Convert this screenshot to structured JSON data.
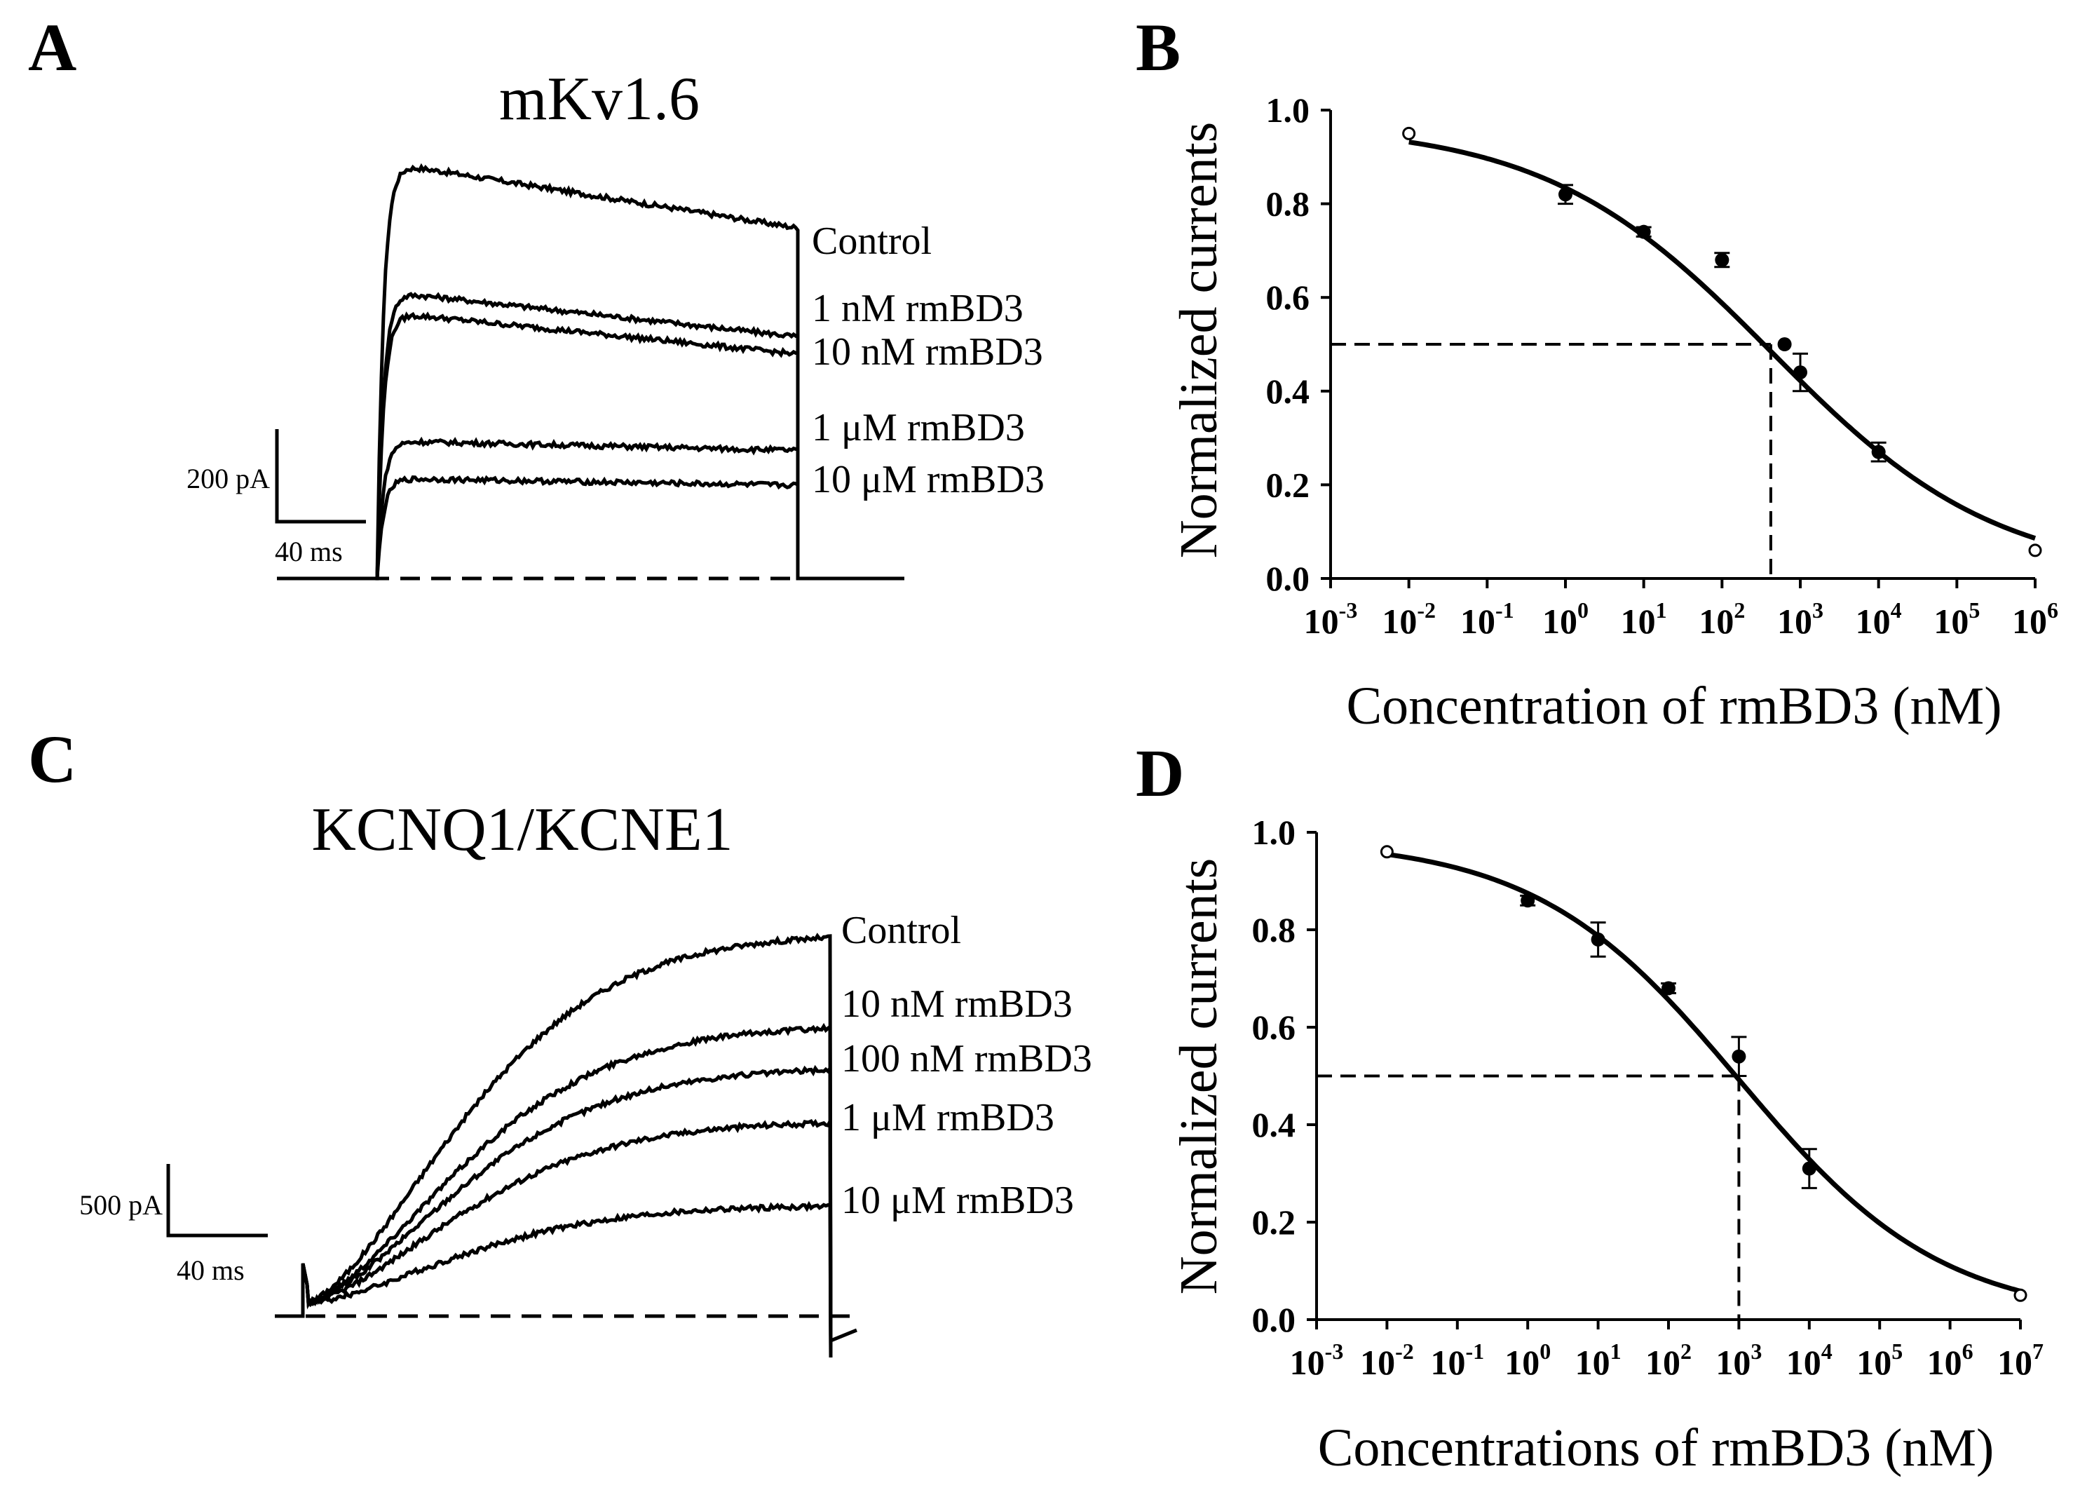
{
  "panels": {
    "A": {
      "letter": "A",
      "title": "mKv1.6",
      "trace_labels": [
        "Control",
        "1 nM rmBD3",
        "10 nM rmBD3",
        "1 μM rmBD3",
        "10 μM rmBD3"
      ],
      "scale_current": "200 pA",
      "scale_time": "40 ms",
      "normalized_amplitudes": [
        1.0,
        0.69,
        0.64,
        0.33,
        0.24
      ]
    },
    "B": {
      "letter": "B"
    },
    "C": {
      "letter": "C",
      "title": "KCNQ1/KCNE1",
      "trace_labels": [
        "Control",
        "10 nM rmBD3",
        "100 nM rmBD3",
        "1 μM rmBD3",
        "10 μM rmBD3"
      ],
      "scale_current": "500 pA",
      "scale_time": "40 ms",
      "normalized_amplitudes": [
        1.0,
        0.76,
        0.65,
        0.51,
        0.29
      ]
    },
    "D": {
      "letter": "D"
    }
  },
  "chart_data": [
    {
      "panel": "B",
      "type": "scatter",
      "fit": "sigmoidal dose-response",
      "xscale": "log10",
      "xlabel": "Concentration of rmBD3 (nM)",
      "ylabel": "Normalized currents",
      "xlim_log10": [
        -3,
        6
      ],
      "ylim": [
        0,
        1.0
      ],
      "yticks": [
        "0.0",
        "0.2",
        "0.4",
        "0.6",
        "0.8",
        "1.0"
      ],
      "xtick_exponents": [
        "-3",
        "-2",
        "-1",
        "0",
        "1",
        "2",
        "3",
        "4",
        "5",
        "6"
      ],
      "xtick_base": "10",
      "points": [
        {
          "x": 1,
          "y": 0.82,
          "err": 0.02
        },
        {
          "x": 10,
          "y": 0.74,
          "err": 0.01
        },
        {
          "x": 100,
          "y": 0.68,
          "err": 0.015
        },
        {
          "x": 630,
          "y": 0.5,
          "err": 0.0
        },
        {
          "x": 1000,
          "y": 0.44,
          "err": 0.04
        },
        {
          "x": 10000,
          "y": 0.27,
          "err": 0.02
        }
      ],
      "fit_endpoints": [
        {
          "x": 0.01,
          "y": 0.95
        },
        {
          "x": 1000000,
          "y": 0.06
        }
      ],
      "fit_params": {
        "top": 0.97,
        "bottom": 0.0,
        "ic50": 420,
        "hill": 0.3
      },
      "ic50_marker": {
        "x": 420,
        "y": 0.5
      }
    },
    {
      "panel": "D",
      "type": "scatter",
      "fit": "sigmoidal dose-response",
      "xscale": "log10",
      "xlabel": "Concentrations of rmBD3 (nM)",
      "ylabel": "Normalized currents",
      "xlim_log10": [
        -3,
        7
      ],
      "ylim": [
        0,
        1.0
      ],
      "yticks": [
        "0.0",
        "0.2",
        "0.4",
        "0.6",
        "0.8",
        "1.0"
      ],
      "xtick_exponents": [
        "-3",
        "-2",
        "-1",
        "0",
        "1",
        "2",
        "3",
        "4",
        "5",
        "6",
        "7"
      ],
      "xtick_base": "10",
      "points": [
        {
          "x": 1,
          "y": 0.86,
          "err": 0.01
        },
        {
          "x": 10,
          "y": 0.78,
          "err": 0.035
        },
        {
          "x": 100,
          "y": 0.68,
          "err": 0.01
        },
        {
          "x": 1000,
          "y": 0.54,
          "err": 0.04
        },
        {
          "x": 10000,
          "y": 0.31,
          "err": 0.04
        }
      ],
      "fit_endpoints": [
        {
          "x": 0.01,
          "y": 0.96
        },
        {
          "x": 10000000,
          "y": 0.05
        }
      ],
      "fit_params": {
        "top": 0.985,
        "bottom": 0.0,
        "ic50": 1000,
        "hill": 0.3
      },
      "ic50_marker": {
        "x": 1000,
        "y": 0.5
      }
    }
  ]
}
